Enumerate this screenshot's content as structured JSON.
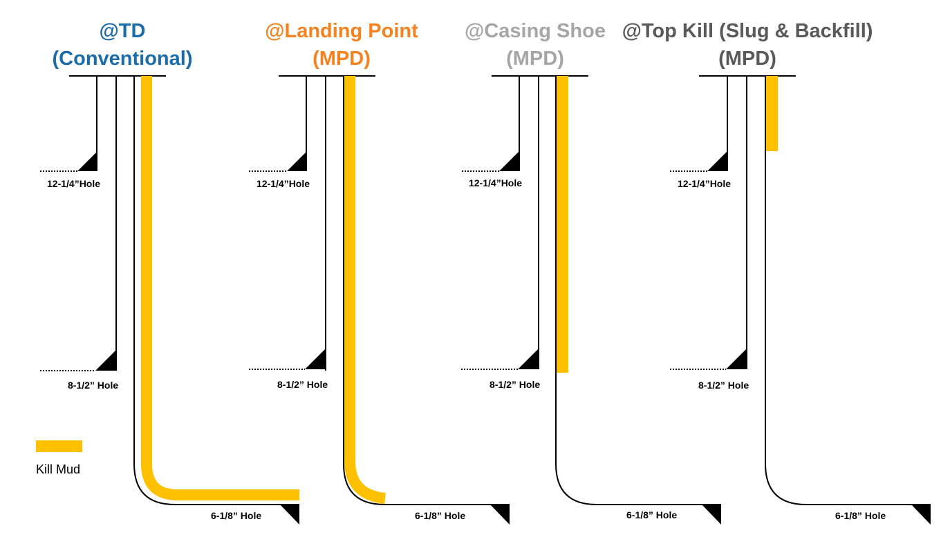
{
  "colors": {
    "kill_mud": "#FFC000",
    "line": "#000000"
  },
  "panels": [
    {
      "title_line1": "@TD",
      "title_line2": "(Conventional)",
      "title_color": "#1B6CA8",
      "labels": {
        "surface_hole": "12-1/4”Hole",
        "intermediate_hole": "8-1/2” Hole",
        "lateral_hole": "6-1/8” Hole"
      },
      "kill_mud_fill": "vertical section, curve and full lateral"
    },
    {
      "title_line1": "@Landing Point",
      "title_line2": "(MPD)",
      "title_color": "#F5821F",
      "labels": {
        "surface_hole": "12-1/4”Hole",
        "intermediate_hole": "8-1/2” Hole",
        "lateral_hole": "6-1/8” Hole"
      },
      "kill_mud_fill": "vertical section and curve to landing point"
    },
    {
      "title_line1": "@Casing Shoe",
      "title_line2": "(MPD)",
      "title_color": "#A6A6A6",
      "labels": {
        "surface_hole": "12-1/4”Hole",
        "intermediate_hole": "8-1/2” Hole",
        "lateral_hole": "6-1/8” Hole"
      },
      "kill_mud_fill": "surface to casing shoe"
    },
    {
      "title_line1": "@Top Kill (Slug & Backfill)",
      "title_line2": "(MPD)",
      "title_color": "#595959",
      "labels": {
        "surface_hole": "12-1/4”Hole",
        "intermediate_hole": "8-1/2” Hole",
        "lateral_hole": "6-1/8” Hole"
      },
      "kill_mud_fill": "top slug only"
    }
  ],
  "legend": {
    "label": "Kill Mud"
  }
}
